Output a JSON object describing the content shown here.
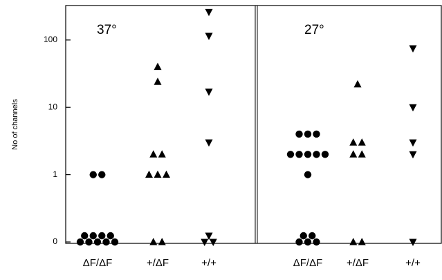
{
  "chart_data": {
    "type": "dot",
    "y_label": "No of channels",
    "log_scale": true,
    "ylim": [
      0,
      325
    ],
    "yticks": [
      0,
      1,
      10,
      100
    ],
    "color": "#000000",
    "panels": [
      {
        "label": "37°",
        "groups": [
          {
            "category": "ΔF/ΔF",
            "marker": "circle",
            "values": [
              1,
              1,
              0,
              0,
              0,
              0,
              0,
              0,
              0,
              0,
              0
            ]
          },
          {
            "category": "+/ΔF",
            "marker": "triangle-up",
            "values": [
              40,
              24,
              2,
              2,
              1,
              1,
              1,
              0,
              0
            ]
          },
          {
            "category": "+/+",
            "marker": "triangle-down",
            "values": [
              260,
              115,
              17,
              3,
              0,
              0,
              0
            ]
          }
        ]
      },
      {
        "label": "27°",
        "groups": [
          {
            "category": "ΔF/ΔF",
            "marker": "circle",
            "values": [
              4,
              4,
              4,
              2,
              2,
              2,
              2,
              2,
              1,
              0,
              0,
              0,
              0,
              0
            ]
          },
          {
            "category": "+/ΔF",
            "marker": "triangle-up",
            "values": [
              22,
              3,
              3,
              2,
              2,
              0,
              0
            ]
          },
          {
            "category": "+/+",
            "marker": "triangle-down",
            "values": [
              75,
              10,
              3,
              2,
              0
            ]
          }
        ]
      }
    ]
  }
}
